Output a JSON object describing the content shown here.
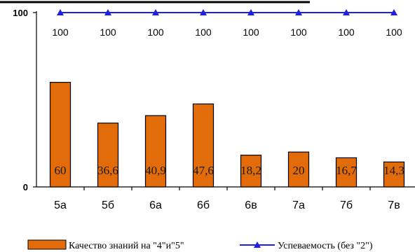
{
  "chart_data": {
    "type": "bar",
    "categories": [
      "5а",
      "5б",
      "6а",
      "6б",
      "6в",
      "7а",
      "7б",
      "7в"
    ],
    "series": [
      {
        "name": "Качество знаний  на \"4\"и\"5\"",
        "kind": "bar",
        "color": "#E36C0A",
        "values": [
          60,
          36.6,
          40.9,
          47.6,
          18.2,
          20,
          16.7,
          14.3
        ],
        "labels": [
          "60",
          "36,6",
          "40,9",
          "47,6",
          "18,2",
          "20",
          "16,7",
          "14,3"
        ]
      },
      {
        "name": "Успеваемость (без \"2\")",
        "kind": "line",
        "color": "#1F1FE0",
        "values": [
          100,
          100,
          100,
          100,
          100,
          100,
          100,
          100
        ],
        "labels": [
          "100",
          "100",
          "100",
          "100",
          "100",
          "100",
          "100",
          "100"
        ]
      }
    ],
    "ylim": [
      0,
      100
    ],
    "yticks": [
      "0",
      "100"
    ],
    "grid": false,
    "legend": "bottom"
  }
}
